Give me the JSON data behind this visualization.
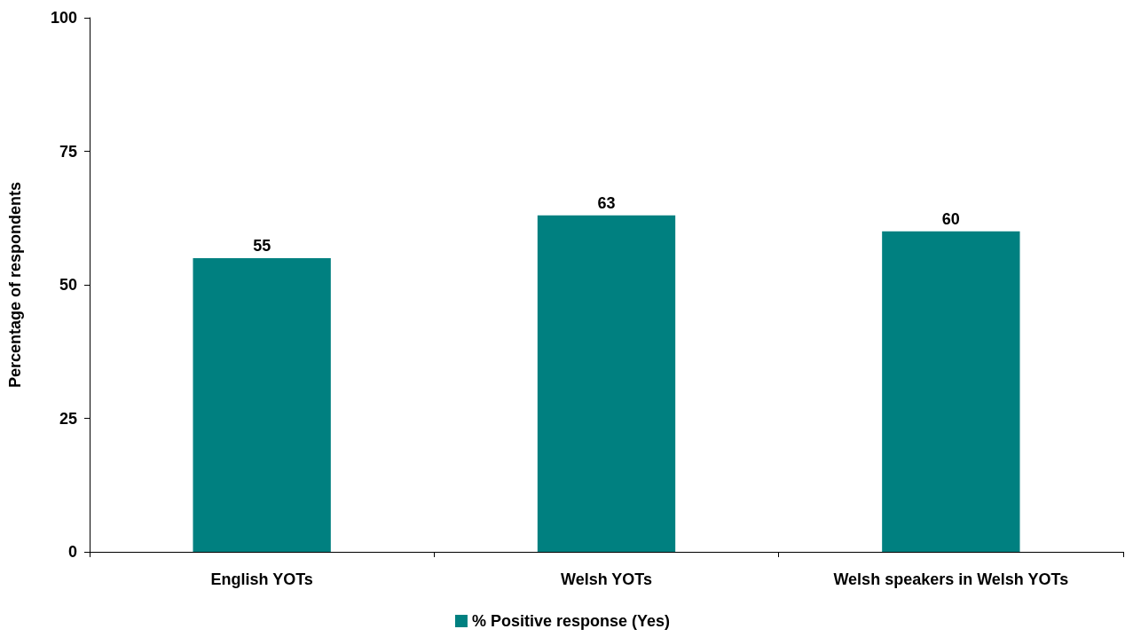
{
  "chart_data": {
    "type": "bar",
    "ylabel": "Percentage of respondents",
    "categories": [
      "English YOTs",
      "Welsh YOTs",
      "Welsh speakers in Welsh YOTs"
    ],
    "series": [
      {
        "name": "% Positive response (Yes)",
        "color": "#008080",
        "values": [
          55,
          63,
          60
        ]
      }
    ],
    "ylim": [
      0,
      100
    ],
    "yticks": [
      0,
      25,
      50,
      75,
      100
    ],
    "grid": false,
    "legend": "bottom",
    "data_labels": true
  }
}
